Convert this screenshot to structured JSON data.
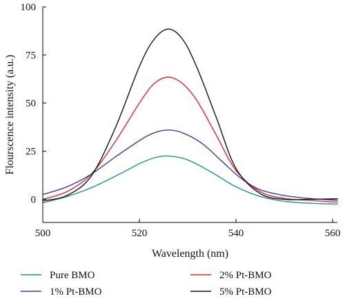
{
  "chart_data": {
    "type": "line",
    "title": "",
    "xlabel": "Wavelength (nm)",
    "ylabel": "Flourscence intensity (a.u.)",
    "xlim": [
      500,
      561
    ],
    "ylim": [
      -12,
      100
    ],
    "xticks": [
      500,
      520,
      540,
      560
    ],
    "yticks": [
      0,
      25,
      50,
      75,
      100
    ],
    "grid": false,
    "legend_position": "bottom",
    "series": [
      {
        "name": "Pure BMO",
        "color": "#1a9485",
        "points": [
          [
            500,
            -1.8
          ],
          [
            505,
            1.5
          ],
          [
            510,
            6
          ],
          [
            515,
            12
          ],
          [
            520,
            18.5
          ],
          [
            523,
            21.5
          ],
          [
            526,
            22.5
          ],
          [
            530,
            20.5
          ],
          [
            535,
            14
          ],
          [
            540,
            6.5
          ],
          [
            545,
            1.5
          ],
          [
            550,
            -1
          ],
          [
            555,
            -2
          ],
          [
            561,
            -2.5
          ]
        ]
      },
      {
        "name": "2% Pt-BMO",
        "color": "#e8242c",
        "points": [
          [
            500,
            0
          ],
          [
            505,
            4
          ],
          [
            510,
            13
          ],
          [
            515,
            30
          ],
          [
            520,
            50
          ],
          [
            523,
            60
          ],
          [
            526,
            63.5
          ],
          [
            529,
            60
          ],
          [
            532,
            51
          ],
          [
            536,
            33
          ],
          [
            540,
            15
          ],
          [
            545,
            4
          ],
          [
            550,
            0.5
          ],
          [
            555,
            -0.5
          ],
          [
            561,
            -1.5
          ]
        ]
      },
      {
        "name": "1% Pt-BMO",
        "color": "#3b3ba8",
        "points": [
          [
            500,
            2.5
          ],
          [
            505,
            6.5
          ],
          [
            510,
            13
          ],
          [
            515,
            22
          ],
          [
            520,
            30.5
          ],
          [
            523,
            34.5
          ],
          [
            526,
            36
          ],
          [
            529,
            34.5
          ],
          [
            533,
            29
          ],
          [
            537,
            20
          ],
          [
            541,
            11
          ],
          [
            545,
            5
          ],
          [
            550,
            2
          ],
          [
            555,
            0.5
          ],
          [
            561,
            -0.5
          ]
        ]
      },
      {
        "name": "5% Pt-BMO",
        "color": "#111111",
        "points": [
          [
            500,
            -0.8
          ],
          [
            505,
            2
          ],
          [
            510,
            12
          ],
          [
            515,
            37
          ],
          [
            520,
            69
          ],
          [
            523,
            83
          ],
          [
            526,
            88.5
          ],
          [
            529,
            83
          ],
          [
            532,
            68
          ],
          [
            536,
            42
          ],
          [
            540,
            16
          ],
          [
            545,
            3
          ],
          [
            550,
            0
          ],
          [
            555,
            0
          ],
          [
            561,
            0.3
          ]
        ]
      }
    ]
  }
}
